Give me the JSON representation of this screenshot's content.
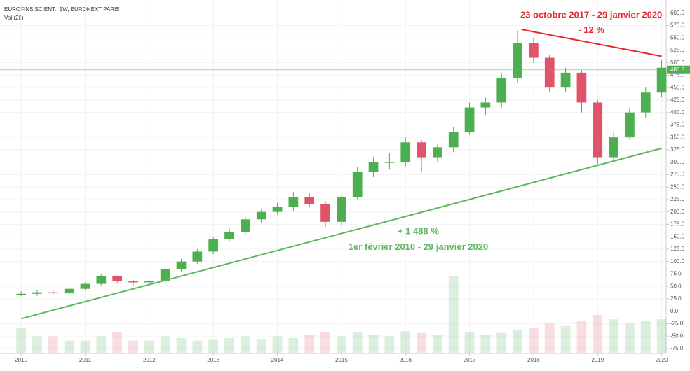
{
  "chart_data": {
    "type": "candlestick",
    "title": "EUROFINS SCIENT., 1W, EURONEXT PARIS",
    "subtitle": "Vol (20)",
    "x": [
      2010,
      2010.25,
      2010.5,
      2010.75,
      2011,
      2011.25,
      2011.5,
      2011.75,
      2012,
      2012.25,
      2012.5,
      2012.75,
      2013,
      2013.25,
      2013.5,
      2013.75,
      2014,
      2014.25,
      2014.5,
      2014.75,
      2015,
      2015.25,
      2015.5,
      2015.75,
      2016,
      2016.25,
      2016.5,
      2016.75,
      2017,
      2017.25,
      2017.5,
      2017.75,
      2018,
      2018.25,
      2018.5,
      2018.75,
      2019,
      2019.25,
      2019.5,
      2019.75,
      2020
    ],
    "open": [
      33,
      35,
      38,
      36,
      45,
      55,
      70,
      60,
      58,
      60,
      85,
      100,
      120,
      145,
      160,
      185,
      200,
      210,
      230,
      215,
      180,
      230,
      280,
      300,
      300,
      340,
      310,
      330,
      360,
      410,
      420,
      470,
      540,
      510,
      450,
      480,
      420,
      310,
      350,
      400,
      440
    ],
    "high": [
      40,
      42,
      42,
      48,
      58,
      75,
      72,
      63,
      63,
      88,
      105,
      125,
      150,
      168,
      190,
      205,
      218,
      240,
      238,
      222,
      235,
      290,
      310,
      318,
      350,
      345,
      338,
      370,
      420,
      430,
      480,
      565,
      550,
      515,
      490,
      485,
      425,
      360,
      410,
      450,
      505
    ],
    "low": [
      30,
      31,
      33,
      33,
      42,
      52,
      56,
      52,
      52,
      56,
      80,
      95,
      115,
      140,
      155,
      178,
      195,
      202,
      210,
      170,
      172,
      225,
      270,
      285,
      290,
      280,
      300,
      320,
      355,
      395,
      410,
      460,
      500,
      440,
      440,
      400,
      295,
      300,
      345,
      390,
      430
    ],
    "close": [
      35,
      38,
      36,
      45,
      55,
      70,
      60,
      58,
      60,
      85,
      100,
      120,
      145,
      160,
      185,
      200,
      210,
      230,
      215,
      180,
      230,
      280,
      300,
      300,
      340,
      310,
      330,
      360,
      410,
      420,
      470,
      540,
      510,
      450,
      480,
      420,
      310,
      350,
      400,
      440,
      490
    ],
    "volume": [
      3,
      2,
      2,
      1.5,
      1.5,
      2,
      2.5,
      1.5,
      1.5,
      2,
      1.8,
      1.5,
      1.6,
      1.8,
      2,
      1.7,
      2,
      1.8,
      2.2,
      2.5,
      2,
      2.5,
      2.2,
      2,
      2.6,
      2.4,
      2.2,
      9,
      2.5,
      2.2,
      2.4,
      2.8,
      3,
      3.5,
      3.2,
      3.8,
      4.5,
      4,
      3.5,
      3.8,
      4
    ],
    "up_color": "#4caf50",
    "down_color": "#e0546a",
    "xlim": [
      2009.67,
      2020.07
    ],
    "xticks": [
      2010,
      2011,
      2012,
      2013,
      2014,
      2015,
      2016,
      2017,
      2018,
      2019,
      2020
    ],
    "ylim": [
      -85,
      615
    ],
    "yticks": [
      {
        "value": -75,
        "label": "-75.0"
      },
      {
        "value": -50,
        "label": "-50.0"
      },
      {
        "value": -25,
        "label": "-25.0"
      },
      {
        "value": 0,
        "label": "0.0"
      },
      {
        "value": 25,
        "label": "25.0"
      },
      {
        "value": 50,
        "label": "50.0"
      },
      {
        "value": 75,
        "label": "75.0"
      },
      {
        "value": 100,
        "label": "100.0"
      },
      {
        "value": 125,
        "label": "125.0"
      },
      {
        "value": 150,
        "label": "150.0"
      },
      {
        "value": 175,
        "label": "175.0"
      },
      {
        "value": 200,
        "label": "200.0"
      },
      {
        "value": 225,
        "label": "225.0"
      },
      {
        "value": 250,
        "label": "250.0"
      },
      {
        "value": 275,
        "label": "275.0"
      },
      {
        "value": 300,
        "label": "300.0"
      },
      {
        "value": 325,
        "label": "325.0"
      },
      {
        "value": 350,
        "label": "350.0"
      },
      {
        "value": 375,
        "label": "375.0"
      },
      {
        "value": 400,
        "label": "400.0"
      },
      {
        "value": 425,
        "label": "425.0"
      },
      {
        "value": 450,
        "label": "450.0"
      },
      {
        "value": 475,
        "label": "475.0"
      },
      {
        "value": 500,
        "label": "500.0"
      },
      {
        "value": 525,
        "label": "525.0"
      },
      {
        "value": 550,
        "label": "550.0"
      },
      {
        "value": 575,
        "label": "575.0"
      },
      {
        "value": 600,
        "label": "600.0"
      }
    ],
    "grid": true,
    "last_price": 485.8,
    "last_price_color": "#4caf50",
    "trend_lines": [
      {
        "color": "#e8262f",
        "x": [
          2017.81,
          2020
        ],
        "y": [
          567,
          513
        ]
      },
      {
        "color": "#5cb85c",
        "x": [
          2010,
          2020
        ],
        "y": [
          -15,
          328
        ]
      }
    ],
    "annotations": [
      {
        "text": "23 octobre 2017 - 29 janvier 2020",
        "color": "#e8262f",
        "x": 2018.9,
        "y": 595
      },
      {
        "text": "- 12 %",
        "color": "#e8262f",
        "x": 2018.9,
        "y": 565
      },
      {
        "text": "+ 1 488 %",
        "color": "#5cb85c",
        "x": 2016.2,
        "y": 160
      },
      {
        "text": "1er février 2010 - 29 janvier 2020",
        "color": "#5cb85c",
        "x": 2016.2,
        "y": 128
      }
    ]
  }
}
